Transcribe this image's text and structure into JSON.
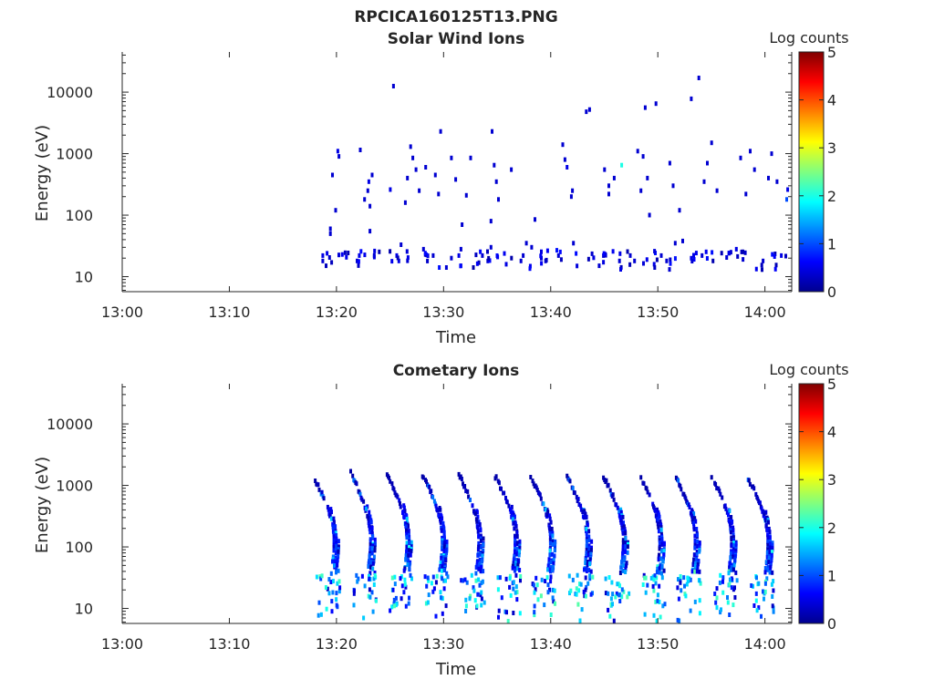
{
  "figure": {
    "title": "RPCICA160125T13.PNG"
  },
  "chart_data": [
    {
      "type": "heatmap",
      "title": "Solar Wind Ions",
      "xlabel": "Time",
      "ylabel": "Energy (eV)",
      "x_ticks": [
        "13:00",
        "13:10",
        "13:20",
        "13:30",
        "13:40",
        "13:50",
        "14:00"
      ],
      "x_range_minutes": [
        0,
        62.5
      ],
      "y_scale": "log",
      "y_range": [
        5.7,
        45000
      ],
      "y_ticks": [
        {
          "value": 10,
          "label": "10"
        },
        {
          "value": 100,
          "label": "100"
        },
        {
          "value": 1000,
          "label": "1000"
        },
        {
          "value": 10000,
          "label": "10000"
        }
      ],
      "colorbar": {
        "label": "Log counts",
        "range": [
          0,
          5
        ],
        "ticks": [
          "0",
          "1",
          "2",
          "3",
          "4",
          "5"
        ]
      },
      "activity_start_minute": 18.5,
      "scan_period_minutes": 3.4,
      "points": [
        [
          18.6,
          18,
          0.4
        ],
        [
          18.6,
          22,
          0.5
        ],
        [
          18.9,
          15,
          0.3
        ],
        [
          19.0,
          24,
          0.5
        ],
        [
          19.3,
          50,
          0.4
        ],
        [
          19.3,
          60,
          0.4
        ],
        [
          19.5,
          450,
          0.4
        ],
        [
          19.8,
          120,
          0.4
        ],
        [
          20.0,
          1100,
          0.5
        ],
        [
          20.1,
          900,
          0.4
        ],
        [
          21.8,
          18,
          0.4
        ],
        [
          22.0,
          22,
          0.5
        ],
        [
          22.1,
          1150,
          0.4
        ],
        [
          22.5,
          180,
          0.4
        ],
        [
          22.8,
          250,
          0.4
        ],
        [
          22.9,
          350,
          0.5
        ],
        [
          23.0,
          55,
          0.4
        ],
        [
          23.0,
          140,
          0.4
        ],
        [
          23.2,
          450,
          0.4
        ],
        [
          23.4,
          22,
          0.4
        ],
        [
          24.9,
          260,
          0.5
        ],
        [
          25.2,
          12500,
          0.4
        ],
        [
          25.5,
          22,
          0.5
        ],
        [
          25.7,
          18,
          0.5
        ],
        [
          25.9,
          33,
          0.4
        ],
        [
          26.3,
          160,
          0.4
        ],
        [
          26.5,
          400,
          0.4
        ],
        [
          26.8,
          1300,
          0.4
        ],
        [
          27.0,
          850,
          0.4
        ],
        [
          27.3,
          550,
          0.4
        ],
        [
          27.6,
          250,
          0.4
        ],
        [
          28.0,
          28,
          0.4
        ],
        [
          28.2,
          600,
          0.4
        ],
        [
          28.9,
          22,
          0.4
        ],
        [
          29.1,
          450,
          0.4
        ],
        [
          29.4,
          220,
          0.4
        ],
        [
          29.6,
          2300,
          0.4
        ],
        [
          30.6,
          850,
          0.4
        ],
        [
          30.6,
          20,
          0.4
        ],
        [
          31.0,
          380,
          0.4
        ],
        [
          31.3,
          22,
          0.5
        ],
        [
          31.5,
          28,
          0.4
        ],
        [
          31.6,
          70,
          0.4
        ],
        [
          32.0,
          210,
          0.4
        ],
        [
          32.4,
          850,
          0.4
        ],
        [
          33.5,
          22,
          0.4
        ],
        [
          34.0,
          18,
          0.4
        ],
        [
          34.3,
          30,
          0.4
        ],
        [
          34.3,
          80,
          0.4
        ],
        [
          34.4,
          2300,
          0.4
        ],
        [
          34.6,
          650,
          0.4
        ],
        [
          34.8,
          350,
          0.4
        ],
        [
          35.0,
          180,
          0.4
        ],
        [
          36.2,
          550,
          0.4
        ],
        [
          37.1,
          18,
          0.4
        ],
        [
          37.3,
          22,
          0.4
        ],
        [
          37.6,
          35,
          0.4
        ],
        [
          38.1,
          30,
          0.4
        ],
        [
          38.4,
          85,
          0.4
        ],
        [
          39.0,
          20,
          0.4
        ],
        [
          39.4,
          18,
          0.4
        ],
        [
          40.6,
          22,
          0.4
        ],
        [
          41.0,
          1400,
          0.4
        ],
        [
          41.2,
          800,
          0.4
        ],
        [
          41.4,
          600,
          0.5
        ],
        [
          41.8,
          200,
          0.4
        ],
        [
          41.9,
          250,
          0.4
        ],
        [
          42.0,
          35,
          0.4
        ],
        [
          43.2,
          4800,
          0.4
        ],
        [
          43.5,
          5200,
          0.4
        ],
        [
          44.4,
          15,
          0.4
        ],
        [
          44.8,
          22,
          0.4
        ],
        [
          44.9,
          550,
          0.4
        ],
        [
          45.3,
          300,
          0.4
        ],
        [
          45.3,
          220,
          0.4
        ],
        [
          45.8,
          400,
          0.4
        ],
        [
          46.3,
          18,
          0.4
        ],
        [
          46.5,
          650,
          2.0
        ],
        [
          47.3,
          22,
          0.4
        ],
        [
          47.7,
          18,
          0.4
        ],
        [
          48.0,
          1100,
          0.4
        ],
        [
          48.3,
          250,
          0.4
        ],
        [
          48.5,
          900,
          0.4
        ],
        [
          48.7,
          5600,
          0.4
        ],
        [
          48.9,
          400,
          0.4
        ],
        [
          49.1,
          100,
          0.4
        ],
        [
          49.7,
          6500,
          0.4
        ],
        [
          50.2,
          22,
          0.4
        ],
        [
          50.7,
          18,
          0.4
        ],
        [
          51.0,
          700,
          0.4
        ],
        [
          51.3,
          300,
          0.4
        ],
        [
          51.5,
          35,
          0.4
        ],
        [
          51.9,
          120,
          0.4
        ],
        [
          52.2,
          38,
          0.4
        ],
        [
          53.0,
          7800,
          0.4
        ],
        [
          53.7,
          17000,
          0.4
        ],
        [
          54.0,
          22,
          0.4
        ],
        [
          54.2,
          350,
          0.4
        ],
        [
          54.5,
          700,
          0.4
        ],
        [
          54.9,
          1500,
          0.4
        ],
        [
          55.4,
          250,
          0.4
        ],
        [
          56.7,
          25,
          0.4
        ],
        [
          57.2,
          28,
          0.5
        ],
        [
          57.6,
          850,
          0.4
        ],
        [
          58.1,
          220,
          0.4
        ],
        [
          58.5,
          1100,
          0.4
        ],
        [
          58.9,
          550,
          0.4
        ],
        [
          59.7,
          18,
          0.4
        ],
        [
          60.2,
          400,
          0.4
        ],
        [
          60.5,
          1000,
          0.4
        ],
        [
          61.0,
          350,
          0.4
        ],
        [
          61.4,
          22,
          0.5
        ],
        [
          61.9,
          180,
          1.0
        ],
        [
          62.0,
          260,
          0.5
        ]
      ]
    },
    {
      "type": "heatmap",
      "title": "Cometary Ions",
      "xlabel": "Time",
      "ylabel": "Energy (eV)",
      "x_ticks": [
        "13:00",
        "13:10",
        "13:20",
        "13:30",
        "13:40",
        "13:50",
        "14:00"
      ],
      "x_range_minutes": [
        0,
        62.5
      ],
      "y_scale": "log",
      "y_range": [
        5.7,
        45000
      ],
      "y_ticks": [
        {
          "value": 10,
          "label": "10"
        },
        {
          "value": 100,
          "label": "100"
        },
        {
          "value": 1000,
          "label": "1000"
        },
        {
          "value": 10000,
          "label": "10000"
        }
      ],
      "colorbar": {
        "label": "Log counts",
        "range": [
          0,
          5
        ],
        "ticks": [
          "0",
          "1",
          "2",
          "3",
          "4",
          "5"
        ]
      },
      "activity_start_minute": 17.8,
      "scan_period_minutes": 3.4,
      "sweeps": [
        {
          "start": 17.8,
          "top_energy": 1300
        },
        {
          "start": 21.2,
          "top_energy": 1600
        },
        {
          "start": 24.6,
          "top_energy": 1500
        },
        {
          "start": 27.9,
          "top_energy": 1500
        },
        {
          "start": 31.3,
          "top_energy": 1500
        },
        {
          "start": 34.7,
          "top_energy": 1400
        },
        {
          "start": 38.0,
          "top_energy": 1400
        },
        {
          "start": 41.4,
          "top_energy": 1400
        },
        {
          "start": 44.8,
          "top_energy": 1400
        },
        {
          "start": 48.2,
          "top_energy": 1400
        },
        {
          "start": 51.5,
          "top_energy": 1400
        },
        {
          "start": 54.9,
          "top_energy": 1400
        },
        {
          "start": 58.3,
          "top_energy": 1300
        }
      ],
      "low_energy_band": {
        "energy_range": [
          6,
          35
        ],
        "peak_level": 2.0
      }
    }
  ]
}
